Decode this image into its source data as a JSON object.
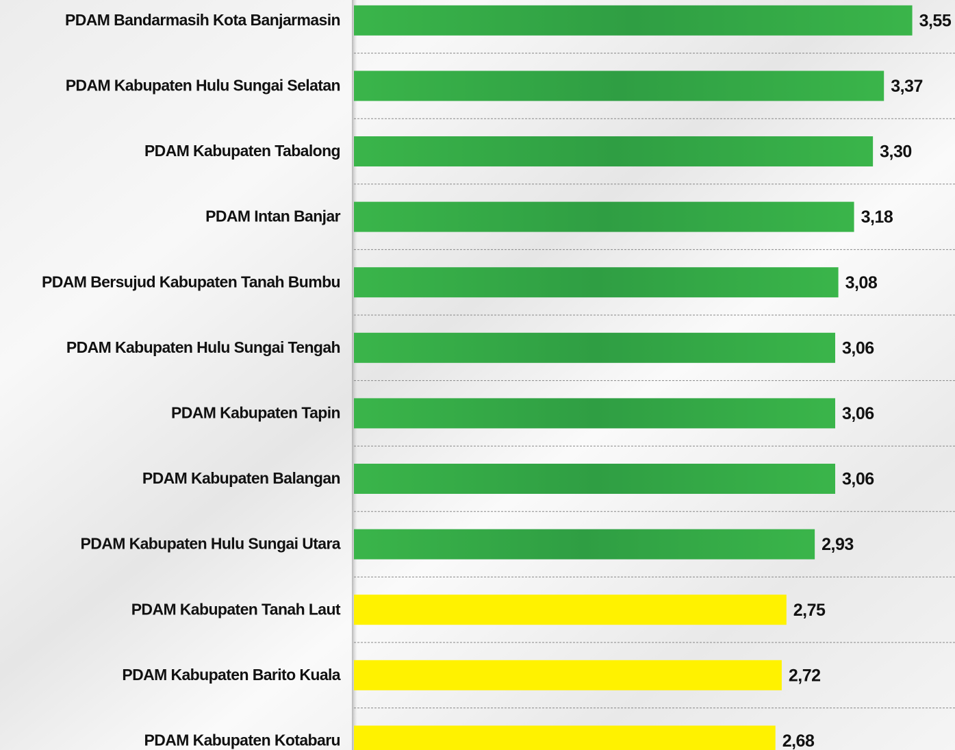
{
  "chart_data": {
    "type": "barh",
    "categories": [
      "PDAM Bandarmasih Kota Banjarmasin",
      "PDAM Kabupaten Hulu Sungai Selatan",
      "PDAM Kabupaten Tabalong",
      "PDAM Intan Banjar",
      "PDAM Bersujud Kabupaten Tanah Bumbu",
      "PDAM Kabupaten Hulu Sungai Tengah",
      "PDAM Kabupaten Tapin",
      "PDAM Kabupaten Balangan",
      "PDAM Kabupaten Hulu Sungai Utara",
      "PDAM Kabupaten Tanah Laut",
      "PDAM Kabupaten Barito Kuala",
      "PDAM Kabupaten Kotabaru"
    ],
    "values": [
      3.55,
      3.37,
      3.3,
      3.18,
      3.08,
      3.06,
      3.06,
      3.06,
      2.93,
      2.75,
      2.72,
      2.68
    ],
    "value_labels": [
      "3,55",
      "3,37",
      "3,30",
      "3,18",
      "3,08",
      "3,06",
      "3,06",
      "3,06",
      "2,93",
      "2,75",
      "2,72",
      "2,68"
    ],
    "colors": [
      "#3ab54a",
      "#3ab54a",
      "#3ab54a",
      "#3ab54a",
      "#3ab54a",
      "#3ab54a",
      "#3ab54a",
      "#3ab54a",
      "#3ab54a",
      "#fff200",
      "#fff200",
      "#fff200"
    ],
    "xlim": [
      0,
      3.8
    ]
  }
}
